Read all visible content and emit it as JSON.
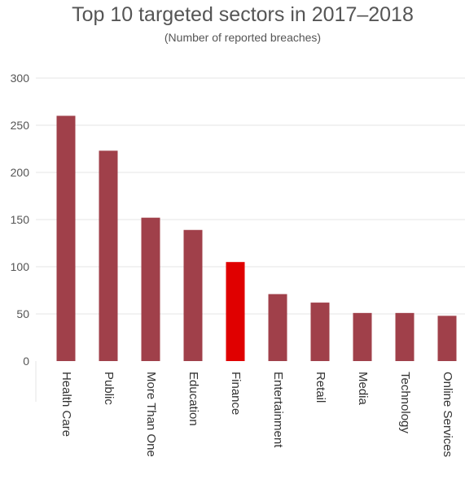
{
  "chart_data": {
    "type": "bar",
    "title": "Top 10 targeted sectors in 2017–2018",
    "subtitle": "(Number of reported breaches)",
    "xlabel": "",
    "ylabel": "",
    "ylim": [
      0,
      300
    ],
    "yticks": [
      0,
      50,
      100,
      150,
      200,
      250,
      300
    ],
    "grid": true,
    "categories": [
      "Health Care",
      "Public",
      "More Than One",
      "Education",
      "Finance",
      "Entertainment",
      "Retail",
      "Media",
      "Technology",
      "Online Services"
    ],
    "values": [
      260,
      223,
      152,
      139,
      105,
      71,
      62,
      51,
      51,
      48
    ],
    "highlight_category": "Finance",
    "colors": {
      "bar": "#a0404a",
      "highlight": "#e00000",
      "grid": "#e6e6e6",
      "axis_text": "#555555"
    }
  }
}
